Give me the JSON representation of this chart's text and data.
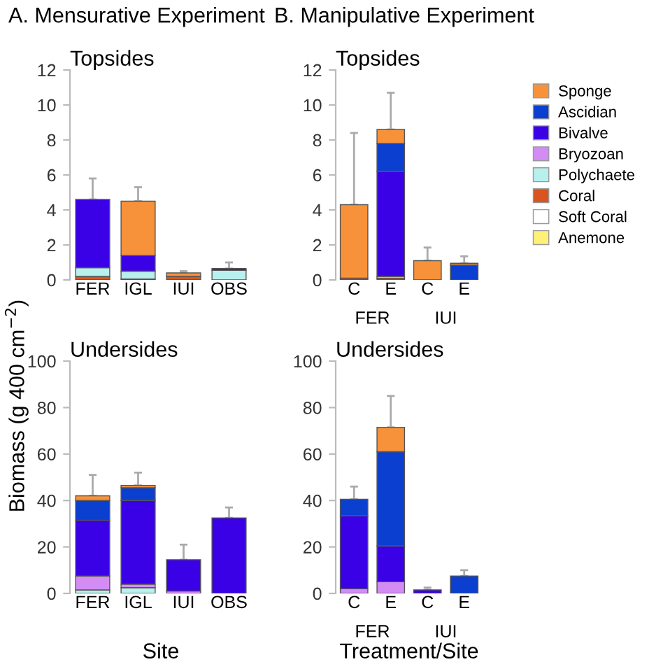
{
  "chart_data": [
    {
      "type": "bar",
      "stacked": true,
      "title": "A. Mensurative Experiment",
      "subtitle": "Topsides",
      "categories": [
        "FER",
        "IGL",
        "IUI",
        "OBS"
      ],
      "ylim": [
        0,
        12
      ],
      "yticks": [
        0,
        2,
        4,
        6,
        8,
        10,
        12
      ],
      "series": [
        {
          "color": "#d9541e",
          "values": [
            0.2,
            0.05,
            0.2,
            0
          ]
        },
        {
          "color": "#b8f0ee",
          "values": [
            0.5,
            0.45,
            0,
            0.55
          ]
        },
        {
          "color": "#3a00e6",
          "values": [
            3.9,
            0.9,
            0,
            0.1
          ],
          "errors": [
            1.2,
            null,
            null,
            0.35
          ]
        },
        {
          "color": "#f7923a",
          "values": [
            0,
            3.1,
            0.2,
            0
          ],
          "errors": [
            null,
            0.8,
            0.1,
            null
          ]
        }
      ]
    },
    {
      "type": "bar",
      "stacked": true,
      "title": "B. Manipulative Experiment",
      "subtitle": "Topsides",
      "categories": [
        "C",
        "E",
        "C",
        "E"
      ],
      "annotations": [
        "FER",
        "IUI"
      ],
      "ylim": [
        0,
        12
      ],
      "yticks": [
        0,
        2,
        4,
        6,
        8,
        10,
        12
      ],
      "legend": "right",
      "series": [
        {
          "name": "Anemone",
          "color": "#fff176",
          "values": [
            0,
            0,
            0,
            0
          ]
        },
        {
          "name": "Soft Coral",
          "color": "#ffffff",
          "values": [
            0,
            0,
            0,
            0
          ]
        },
        {
          "name": "Coral",
          "color": "#d9541e",
          "values": [
            0.1,
            0.1,
            0,
            0
          ]
        },
        {
          "name": "Polychaete",
          "color": "#b8f0ee",
          "values": [
            0,
            0.1,
            0,
            0
          ]
        },
        {
          "name": "Bryozoan",
          "color": "#d48cf5",
          "values": [
            0,
            0,
            0,
            0
          ]
        },
        {
          "name": "Bivalve",
          "color": "#3a00e6",
          "values": [
            0,
            6.0,
            0,
            0
          ]
        },
        {
          "name": "Ascidian",
          "color": "#0a3fd0",
          "values": [
            0,
            1.6,
            0,
            0.85
          ]
        },
        {
          "name": "Sponge",
          "color": "#f7923a",
          "values": [
            4.2,
            0.8,
            1.1,
            0.1
          ],
          "errors": [
            4.1,
            2.1,
            0.75,
            0.4
          ]
        }
      ]
    },
    {
      "type": "bar",
      "stacked": true,
      "subtitle": "Undersides",
      "xlabel": "Site",
      "ylabel": "Biomass (g 400 cm$^{−2}$)",
      "categories": [
        "FER",
        "IGL",
        "IUI",
        "OBS"
      ],
      "ylim": [
        0,
        100
      ],
      "yticks": [
        0,
        20,
        40,
        60,
        80,
        100
      ],
      "series": [
        {
          "color": "#b8f0ee",
          "values": [
            1.5,
            2.5,
            0,
            0
          ]
        },
        {
          "color": "#d48cf5",
          "values": [
            6,
            1.5,
            1,
            0
          ]
        },
        {
          "color": "#3a00e6",
          "values": [
            24,
            36,
            13.5,
            32.5
          ],
          "errors": [
            null,
            null,
            6.5,
            4.5
          ]
        },
        {
          "color": "#0a3fd0",
          "values": [
            8.5,
            5.5,
            0,
            0
          ]
        },
        {
          "color": "#f7923a",
          "values": [
            2,
            1,
            0,
            0
          ],
          "errors": [
            9,
            5.5,
            null,
            null
          ]
        }
      ]
    },
    {
      "type": "bar",
      "stacked": true,
      "subtitle": "Undersides",
      "xlabel": "Treatment/Site",
      "categories": [
        "C",
        "E",
        "C",
        "E"
      ],
      "annotations": [
        "FER",
        "IUI"
      ],
      "ylim": [
        0,
        100
      ],
      "yticks": [
        0,
        20,
        40,
        60,
        80,
        100
      ],
      "series": [
        {
          "color": "#d48cf5",
          "values": [
            2,
            5,
            0,
            0
          ]
        },
        {
          "color": "#3a00e6",
          "values": [
            31.5,
            15.5,
            1.5,
            0
          ],
          "errors": [
            null,
            null,
            1,
            null
          ]
        },
        {
          "color": "#0a3fd0",
          "values": [
            7,
            40.5,
            0,
            7.5
          ],
          "errors": [
            5.5,
            null,
            null,
            2.5
          ]
        },
        {
          "color": "#f7923a",
          "values": [
            0,
            10.5,
            0,
            0
          ],
          "errors": [
            null,
            13.5,
            null,
            null
          ]
        }
      ]
    }
  ]
}
